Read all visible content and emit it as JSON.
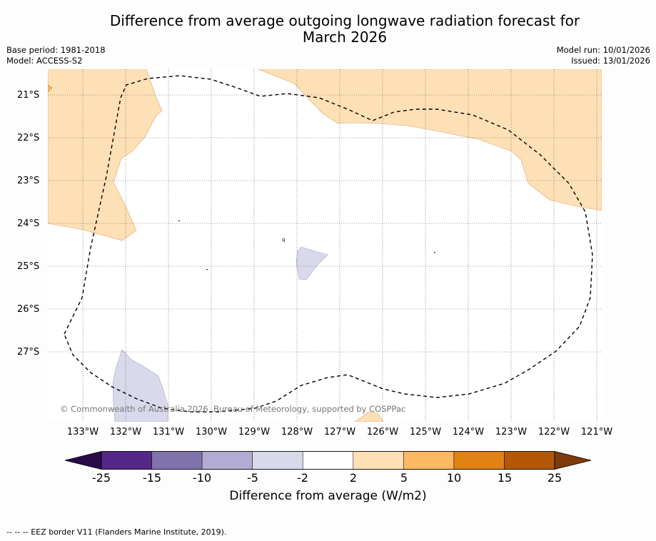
{
  "title": {
    "line1": "Difference from average outgoing longwave radiation forecast for",
    "line2": "March 2026"
  },
  "meta": {
    "base_period": "Base period: 1981-2018",
    "model": "Model: ACCESS-S2",
    "model_run": "Model run: 10/01/2026",
    "issued": "Issued: 13/01/2026"
  },
  "axes": {
    "lat_labels": [
      "21°S",
      "22°S",
      "23°S",
      "24°S",
      "25°S",
      "26°S",
      "27°S"
    ],
    "lon_labels": [
      "133°W",
      "132°W",
      "131°W",
      "130°W",
      "129°W",
      "128°W",
      "127°W",
      "126°W",
      "125°W",
      "124°W",
      "123°W",
      "122°W",
      "121°W"
    ]
  },
  "map": {
    "copyright": "© Commonwealth of Australia 2026, Bureau of Meteorology, supported by COSPPac",
    "tiny_label": "q"
  },
  "colorbar": {
    "ticks": [
      "-25",
      "-15",
      "-10",
      "-5",
      "-2",
      "2",
      "5",
      "10",
      "15",
      "25"
    ],
    "label": "Difference from average (W/m2)",
    "colors": [
      "#2a0a4a",
      "#542788",
      "#8073ac",
      "#b2abd2",
      "#d8daeb",
      "#ffffff",
      "#fee0b6",
      "#fdb863",
      "#e08214",
      "#b35806",
      "#7f3b08"
    ]
  },
  "footer": {
    "legend_text": "--  --  -- EEZ border V11 (Flanders Marine Institute, 2019)."
  }
}
